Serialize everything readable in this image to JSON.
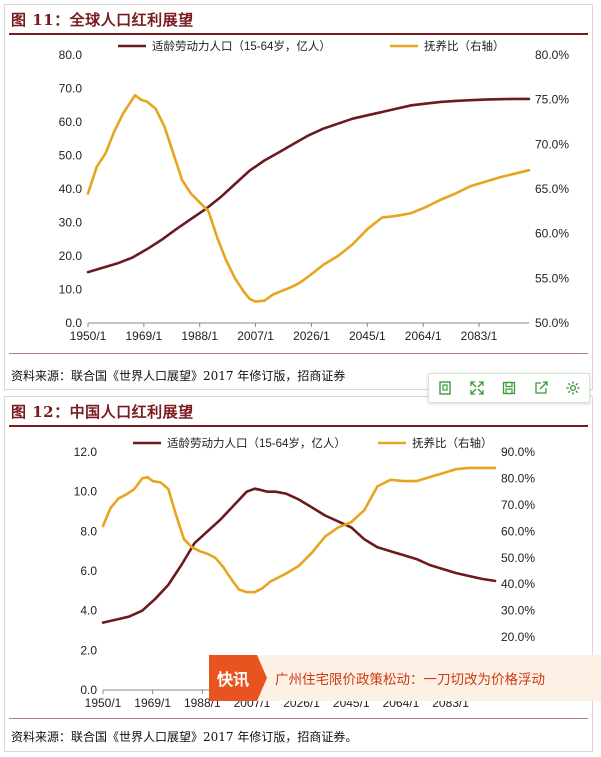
{
  "panels": [
    {
      "title": "图 11：全球人口红利展望",
      "source": "资料来源：联合国《世界人口展望》2017 年修订版，招商证券",
      "chart_data": {
        "type": "line",
        "x_tick_labels": [
          "1950/1",
          "1969/1",
          "1988/1",
          "2007/1",
          "2026/1",
          "2045/1",
          "2064/1",
          "2083/1"
        ],
        "xlim": [
          1950,
          2100
        ],
        "y_left_ticks": [
          "0.0",
          "10.0",
          "20.0",
          "30.0",
          "40.0",
          "50.0",
          "60.0",
          "70.0",
          "80.0"
        ],
        "ylim_left": [
          0,
          80
        ],
        "y_right_ticks": [
          "50.0%",
          "55.0%",
          "60.0%",
          "65.0%",
          "70.0%",
          "75.0%",
          "80.0%"
        ],
        "ylim_right": [
          50,
          80
        ],
        "legend_position": "top",
        "series": [
          {
            "name": "适龄劳动力人口（15-64岁，亿人）",
            "axis": "left",
            "color": "#6b1a1f",
            "x": [
              1950,
              1955,
              1960,
              1965,
              1970,
              1975,
              1980,
              1985,
              1990,
              1995,
              2000,
              2005,
              2010,
              2015,
              2020,
              2025,
              2030,
              2035,
              2040,
              2045,
              2050,
              2055,
              2060,
              2065,
              2070,
              2075,
              2080,
              2085,
              2090,
              2095,
              2100
            ],
            "y": [
              15.2,
              16.5,
              17.8,
              19.5,
              22.0,
              24.8,
              28.0,
              31.0,
              34.0,
              37.5,
              41.5,
              45.5,
              48.5,
              51.0,
              53.5,
              56.0,
              58.0,
              59.5,
              61.0,
              62.0,
              63.0,
              64.0,
              65.0,
              65.5,
              66.0,
              66.3,
              66.5,
              66.7,
              66.8,
              66.9,
              66.9
            ]
          },
          {
            "name": "抚养比（右轴）",
            "axis": "right",
            "color": "#e8a41f",
            "x": [
              1950,
              1953,
              1956,
              1959,
              1962,
              1965,
              1966,
              1968,
              1970,
              1973,
              1976,
              1979,
              1982,
              1985,
              1988,
              1991,
              1994,
              1997,
              2000,
              2003,
              2005,
              2007,
              2010,
              2013,
              2016,
              2019,
              2022,
              2025,
              2030,
              2035,
              2040,
              2045,
              2050,
              2055,
              2060,
              2065,
              2070,
              2075,
              2080,
              2085,
              2090,
              2095,
              2100
            ],
            "y": [
              64.5,
              67.5,
              69.0,
              71.5,
              73.5,
              75.0,
              75.5,
              75.0,
              74.8,
              74.0,
              72.0,
              69.0,
              66.0,
              64.5,
              63.5,
              62.5,
              59.5,
              57.0,
              55.0,
              53.5,
              52.7,
              52.4,
              52.5,
              53.2,
              53.6,
              54.0,
              54.5,
              55.2,
              56.5,
              57.5,
              58.8,
              60.5,
              61.8,
              62.0,
              62.3,
              63.0,
              63.8,
              64.5,
              65.3,
              65.8,
              66.3,
              66.7,
              67.1
            ]
          }
        ]
      }
    },
    {
      "title": "图 12：中国人口红利展望",
      "source": "资料来源：联合国《世界人口展望》2017 年修订版，招商证券。",
      "chart_data": {
        "type": "line",
        "x_tick_labels": [
          "1950/1",
          "1969/1",
          "1988/1",
          "2007/1",
          "2026/1",
          "2045/1",
          "2064/1",
          "2083/1"
        ],
        "xlim": [
          1950,
          2100
        ],
        "y_left_ticks": [
          "0.0",
          "2.0",
          "4.0",
          "6.0",
          "8.0",
          "10.0",
          "12.0"
        ],
        "ylim_left": [
          0,
          12
        ],
        "y_right_ticks": [
          "0.0%",
          "10.0%",
          "20.0%",
          "30.0%",
          "40.0%",
          "50.0%",
          "60.0%",
          "70.0%",
          "80.0%",
          "90.0%"
        ],
        "ylim_right": [
          0,
          90
        ],
        "legend_position": "top",
        "series": [
          {
            "name": "适龄劳动力人口（15-64岁，亿人）",
            "axis": "left",
            "color": "#6b1a1f",
            "x": [
              1950,
              1955,
              1960,
              1965,
              1970,
              1975,
              1980,
              1985,
              1990,
              1995,
              2000,
              2005,
              2008,
              2010,
              2013,
              2016,
              2020,
              2025,
              2030,
              2035,
              2040,
              2045,
              2050,
              2055,
              2060,
              2065,
              2070,
              2075,
              2080,
              2085,
              2090,
              2095,
              2100
            ],
            "y": [
              3.4,
              3.55,
              3.7,
              4.0,
              4.6,
              5.3,
              6.3,
              7.4,
              8.0,
              8.6,
              9.3,
              10.0,
              10.15,
              10.1,
              10.0,
              10.0,
              9.9,
              9.6,
              9.2,
              8.8,
              8.5,
              8.2,
              7.6,
              7.2,
              7.0,
              6.8,
              6.6,
              6.3,
              6.1,
              5.9,
              5.75,
              5.6,
              5.5
            ]
          },
          {
            "name": "抚养比（右轴）",
            "axis": "right",
            "color": "#e8a41f",
            "x": [
              1950,
              1953,
              1956,
              1959,
              1962,
              1965,
              1967,
              1969,
              1972,
              1975,
              1978,
              1981,
              1984,
              1987,
              1990,
              1993,
              1996,
              1999,
              2002,
              2005,
              2008,
              2011,
              2014,
              2017,
              2020,
              2025,
              2030,
              2035,
              2040,
              2045,
              2050,
              2055,
              2060,
              2065,
              2070,
              2075,
              2080,
              2085,
              2090,
              2095,
              2100
            ],
            "y": [
              62.0,
              69.0,
              72.5,
              74.0,
              76.0,
              80.0,
              80.5,
              79.0,
              78.5,
              76.0,
              66.0,
              57.0,
              54.0,
              52.5,
              51.5,
              50.0,
              46.5,
              42.0,
              38.0,
              37.0,
              37.0,
              38.5,
              41.0,
              42.5,
              44.0,
              47.0,
              52.0,
              58.0,
              61.5,
              63.5,
              68.0,
              77.0,
              79.5,
              79.0,
              79.0,
              80.5,
              82.0,
              83.5,
              84.0,
              84.0,
              84.0
            ]
          }
        ]
      }
    }
  ],
  "news": {
    "tag": "快讯",
    "text": "广州住宅限价政策松动：一刀切改为价格浮动"
  },
  "toolbar": {
    "icons": [
      "bookmark-icon",
      "expand-icon",
      "save-icon",
      "share-icon",
      "gear-icon"
    ]
  },
  "colors": {
    "title": "#7a1c1f",
    "labor": "#6b1a1f",
    "dependency": "#e8a41f",
    "news_tag": "#e8531f"
  }
}
